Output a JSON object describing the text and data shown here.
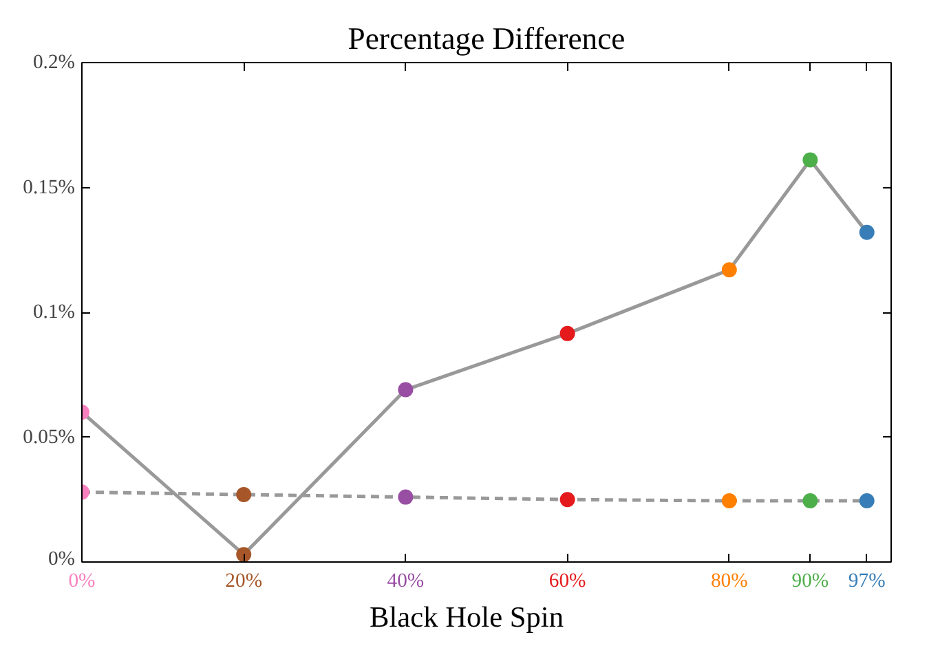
{
  "chart_data": {
    "type": "line",
    "title": "Percentage Difference",
    "xlabel": "Black Hole Spin",
    "x": [
      0,
      20,
      40,
      60,
      80,
      90,
      97
    ],
    "series": [
      {
        "color": "#999999",
        "line_style": "solid",
        "colors": [
          "#f781bf",
          "#a65628",
          "#984ea3",
          "#e41a1c",
          "#ff7f00",
          "#4daf4a",
          "#377eb8"
        ],
        "values": [
          0.06,
          0.003,
          0.069,
          0.0915,
          0.117,
          0.161,
          0.132
        ]
      },
      {
        "color": "#999999",
        "line_style": "dashed",
        "colors": [
          "#f781bf",
          "#a65628",
          "#984ea3",
          "#e41a1c",
          "#ff7f00",
          "#4daf4a",
          "#377eb8"
        ],
        "values": [
          0.028,
          0.027,
          0.026,
          0.025,
          0.0245,
          0.0245,
          0.0245
        ]
      }
    ],
    "xlim": [
      0,
      100
    ],
    "xticks": [
      {
        "value": 0,
        "label": "0%"
      },
      {
        "value": 20,
        "label": "20%"
      },
      {
        "value": 40,
        "label": "40%"
      },
      {
        "value": 60,
        "label": "60%"
      },
      {
        "value": 80,
        "label": "80%"
      },
      {
        "value": 90,
        "label": "90%"
      },
      {
        "value": 97,
        "label": "97%"
      }
    ],
    "ylim": [
      0,
      0.2
    ],
    "yticks": [
      {
        "value": 0,
        "label": "0%"
      },
      {
        "value": 0.05,
        "label": "0.05%"
      },
      {
        "value": 0.1,
        "label": "0.1%"
      },
      {
        "value": 0.15,
        "label": "0.15%"
      },
      {
        "value": 0.2,
        "label": "0.2%"
      }
    ],
    "grid": false,
    "marker": "circle"
  }
}
